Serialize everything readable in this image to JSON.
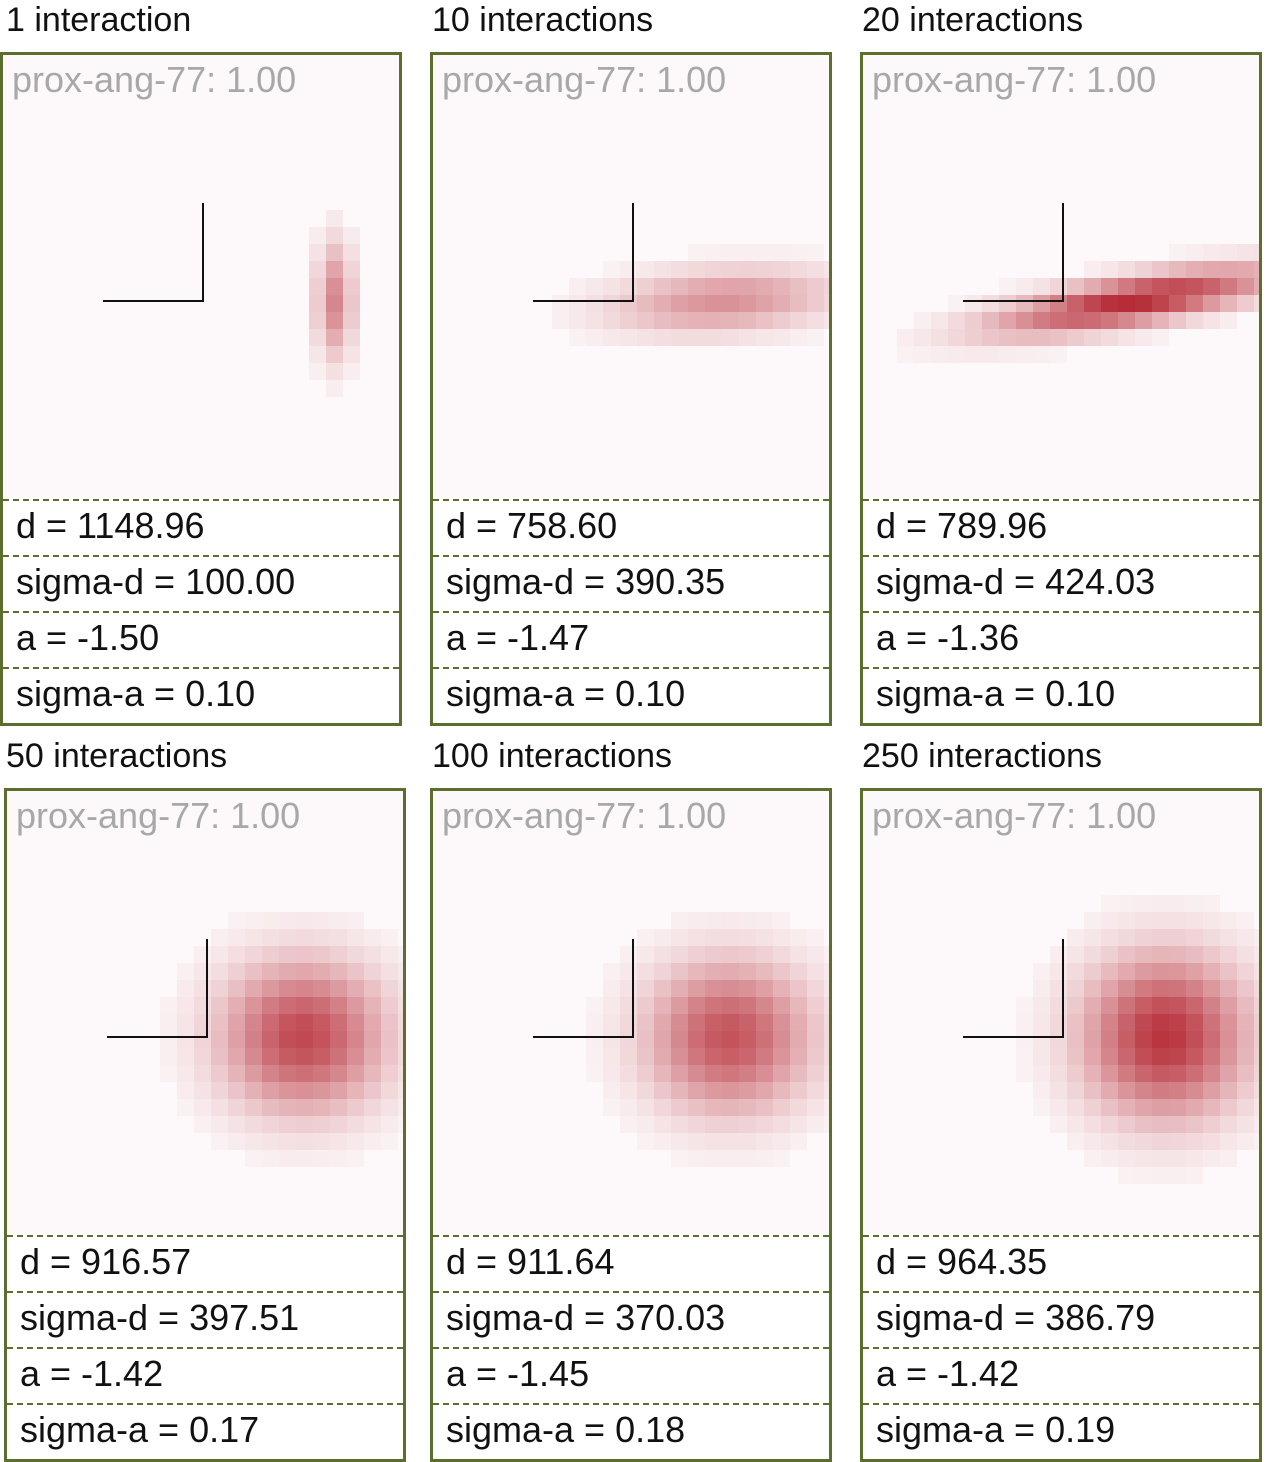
{
  "colors": {
    "frame": "#5b6e2e",
    "heat": "#b52a35",
    "title": "#a8a8a8"
  },
  "panels": [
    {
      "caption": "1 interaction",
      "title": "prox-ang-77: 1.00",
      "d": "d = 1148.96",
      "sigma_d": "sigma-d = 100.00",
      "a": "a = -1.50",
      "sigma_a": "sigma-a = 0.10",
      "heat": {
        "cx": 2.2,
        "cy": 0.0,
        "sx": 0.32,
        "sy": 1.0,
        "rot": 0,
        "peak": 0.55
      }
    },
    {
      "caption": "10 interactions",
      "title": "prox-ang-77: 1.00",
      "d": "d = 758.60",
      "sigma_d": "sigma-d = 390.35",
      "a": "a = -1.47",
      "sigma_a": "sigma-a = 0.10",
      "heat": {
        "cx": 1.5,
        "cy": 0.0,
        "sx": 1.9,
        "sy": 0.55,
        "rot": -4,
        "peak": 0.5
      }
    },
    {
      "caption": "20 interactions",
      "title": "prox-ang-77: 1.00",
      "d": "d = 789.96",
      "sigma_d": "sigma-d = 424.03",
      "a": "a = -1.36",
      "sigma_a": "sigma-a = 0.10",
      "heat": {
        "cx": 1.2,
        "cy": 0.0,
        "sx": 2.4,
        "sy": 0.4,
        "rot": -10,
        "peak": 1.0
      }
    },
    {
      "caption": "50 interactions",
      "title": "prox-ang-77: 1.00",
      "d": "d = 916.57",
      "sigma_d": "sigma-d = 397.51",
      "a": "a = -1.42",
      "sigma_a": "sigma-a = 0.17",
      "heat": {
        "cx": 1.6,
        "cy": 0.0,
        "sx": 1.4,
        "sy": 1.3,
        "rot": 0,
        "peak": 0.85
      }
    },
    {
      "caption": "100 interactions",
      "title": "prox-ang-77: 1.00",
      "d": "d = 911.64",
      "sigma_d": "sigma-d = 370.03",
      "a": "a = -1.45",
      "sigma_a": "sigma-a = 0.18",
      "heat": {
        "cx": 1.6,
        "cy": 0.0,
        "sx": 1.4,
        "sy": 1.3,
        "rot": 0,
        "peak": 0.8
      }
    },
    {
      "caption": "250 interactions",
      "title": "prox-ang-77: 1.00",
      "d": "d = 964.35",
      "sigma_d": "sigma-d = 386.79",
      "a": "a = -1.42",
      "sigma_a": "sigma-a = 0.19",
      "heat": {
        "cx": 1.7,
        "cy": 0.0,
        "sx": 1.4,
        "sy": 1.4,
        "rot": 0,
        "peak": 0.95
      }
    }
  ]
}
